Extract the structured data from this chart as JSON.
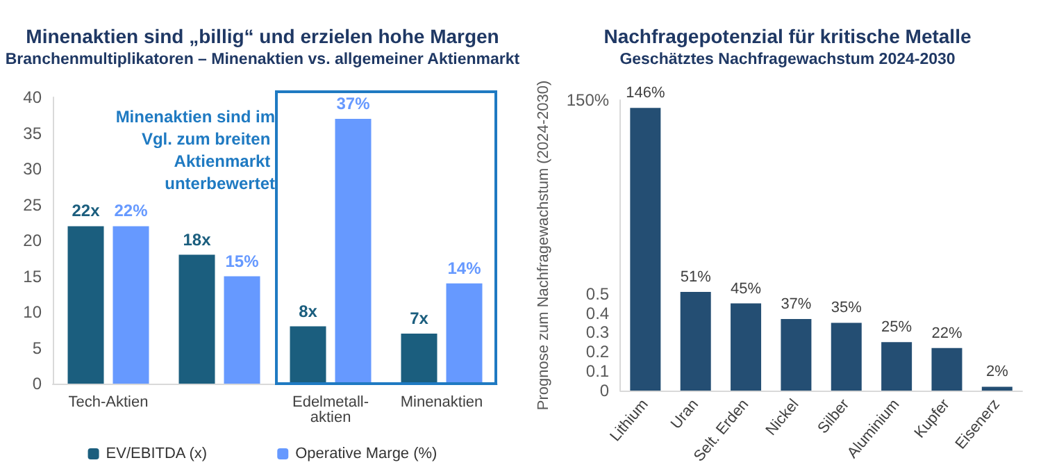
{
  "chart_data": [
    {
      "type": "bar",
      "title": "Minenaktien sind „billig“ und erzielen hohe Margen",
      "subtitle": "Branchenmultiplikatoren – Minenaktien vs. allgemeiner Aktienmarkt",
      "categories": [
        "Tech-Aktien",
        null,
        "Edelmetall-aktien",
        "Minenaktien"
      ],
      "series": [
        {
          "name": "EV/EBITDA (x)",
          "color": "#1b5e7e",
          "values": [
            22,
            18,
            8,
            7
          ],
          "value_labels": [
            "22x",
            "18x",
            "8x",
            "7x"
          ]
        },
        {
          "name": "Operative Marge (%)",
          "color": "#6699ff",
          "values": [
            22,
            15,
            37,
            14
          ],
          "value_labels": [
            "22%",
            "15%",
            "37%",
            "14%"
          ]
        }
      ],
      "ylim": [
        0,
        40
      ],
      "yticks": [
        0,
        5,
        10,
        15,
        20,
        25,
        30,
        35,
        40
      ],
      "grid": false,
      "legend": "bottom",
      "annotations": [
        "Minenaktien sind im Vgl. zum breiten Aktienmarkt unterbewertet"
      ]
    },
    {
      "type": "bar",
      "title": "Nachfragepotenzial für kritische Metalle",
      "subtitle": "Geschätztes Nachfragewachstum 2024-2030",
      "ylabel": "Prognose zum Nachfragewachstum (2024-2030)",
      "categories": [
        "Lithium",
        "Uran",
        "Selt. Erden",
        "Nickel",
        "Silber",
        "Aluminium",
        "Kupfer",
        "Eisenerz"
      ],
      "values": [
        1.46,
        0.51,
        0.45,
        0.37,
        0.35,
        0.25,
        0.22,
        0.02
      ],
      "color": "#244e73",
      "value_labels": [
        "146%",
        "51%",
        "45%",
        "37%",
        "35%",
        "25%",
        "22%",
        "2%"
      ],
      "ylim": [
        0,
        1.5
      ],
      "yticks": [
        0,
        0.1,
        0.2,
        0.3,
        0.4,
        0.5,
        {
          "value": 1.5,
          "label": "150%"
        }
      ],
      "grid": false,
      "legend": false
    }
  ]
}
